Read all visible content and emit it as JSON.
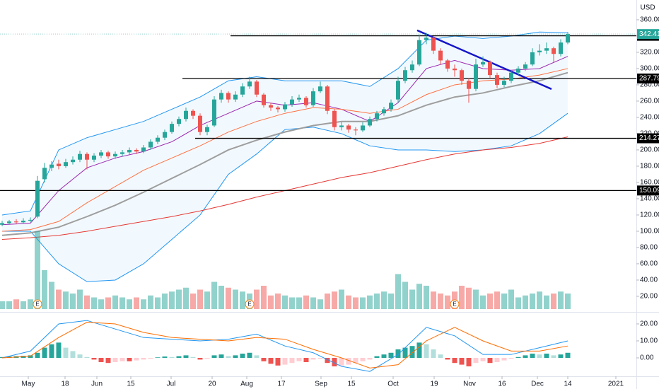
{
  "chart_data": {
    "type": "candlestick",
    "currency": "USD",
    "xlim": [
      -0.3,
      89.7
    ],
    "xticks": [
      {
        "value": 3.7,
        "label": "May"
      },
      {
        "value": 8.9,
        "label": "18"
      },
      {
        "value": 13.4,
        "label": "Jun"
      },
      {
        "value": 18.2,
        "label": "15"
      },
      {
        "value": 23.9,
        "label": "Jul"
      },
      {
        "value": 29.7,
        "label": "20"
      },
      {
        "value": 34.6,
        "label": "Aug"
      },
      {
        "value": 39.5,
        "label": "17"
      },
      {
        "value": 45.1,
        "label": "Sep"
      },
      {
        "value": 49.4,
        "label": "15"
      },
      {
        "value": 55.3,
        "label": "Oct"
      },
      {
        "value": 61.1,
        "label": "19"
      },
      {
        "value": 66.1,
        "label": "Nov"
      },
      {
        "value": 70.7,
        "label": "16"
      },
      {
        "value": 75.7,
        "label": "Dec"
      },
      {
        "value": 80,
        "label": "14"
      },
      {
        "value": 86.8,
        "label": "2021"
      }
    ],
    "ylim": [
      1.7,
      384.3
    ],
    "yticks": [
      {
        "value": 360,
        "label": "360.00"
      },
      {
        "value": 320,
        "label": "320.00"
      },
      {
        "value": 300,
        "label": "300.00"
      },
      {
        "value": 280,
        "label": "280.00"
      },
      {
        "value": 260,
        "label": "260.00"
      },
      {
        "value": 240,
        "label": "240.00"
      },
      {
        "value": 220,
        "label": "220.00"
      },
      {
        "value": 200,
        "label": "200.00"
      },
      {
        "value": 180,
        "label": "180.00"
      },
      {
        "value": 160,
        "label": "160.00"
      },
      {
        "value": 140,
        "label": "140.00"
      },
      {
        "value": 120,
        "label": "120.00"
      },
      {
        "value": 100,
        "label": "100.00"
      },
      {
        "value": 80,
        "label": "80.00"
      },
      {
        "value": 60,
        "label": "60.00"
      },
      {
        "value": 40,
        "label": "40.00"
      },
      {
        "value": 20,
        "label": "20.00"
      }
    ],
    "up_color": "#26a69a",
    "down_color": "#ef5350",
    "candles": [
      [
        108,
        113,
        106,
        110
      ],
      [
        110,
        114,
        108,
        112
      ],
      [
        112,
        115,
        109,
        111
      ],
      [
        111,
        116,
        109,
        113
      ],
      [
        113,
        117,
        111,
        114
      ],
      [
        118,
        168,
        116,
        162
      ],
      [
        164,
        184,
        160,
        178
      ],
      [
        178,
        186,
        174,
        182
      ],
      [
        183,
        188,
        176,
        180
      ],
      [
        180,
        189,
        178,
        185
      ],
      [
        185,
        192,
        182,
        188
      ],
      [
        188,
        199,
        185,
        195
      ],
      [
        195,
        197,
        176,
        188
      ],
      [
        188,
        196,
        185,
        193
      ],
      [
        193,
        200,
        190,
        197
      ],
      [
        197,
        199,
        189,
        192
      ],
      [
        192,
        198,
        189,
        195
      ],
      [
        195,
        200,
        192,
        197
      ],
      [
        197,
        203,
        194,
        200
      ],
      [
        200,
        202,
        195,
        198
      ],
      [
        198,
        206,
        196,
        203
      ],
      [
        203,
        213,
        200,
        210
      ],
      [
        210,
        218,
        207,
        215
      ],
      [
        215,
        225,
        212,
        222
      ],
      [
        222,
        235,
        220,
        232
      ],
      [
        232,
        241,
        229,
        238
      ],
      [
        238,
        252,
        235,
        248
      ],
      [
        248,
        250,
        238,
        242
      ],
      [
        242,
        245,
        218,
        222
      ],
      [
        222,
        231,
        218,
        228
      ],
      [
        230,
        266,
        228,
        262
      ],
      [
        262,
        274,
        258,
        270
      ],
      [
        270,
        272,
        258,
        262
      ],
      [
        262,
        272,
        259,
        268
      ],
      [
        268,
        282,
        265,
        278
      ],
      [
        278,
        290,
        275,
        284
      ],
      [
        284,
        286,
        265,
        268
      ],
      [
        268,
        270,
        252,
        255
      ],
      [
        255,
        258,
        248,
        252
      ],
      [
        252,
        254,
        246,
        250
      ],
      [
        250,
        259,
        247,
        256
      ],
      [
        256,
        266,
        253,
        262
      ],
      [
        262,
        268,
        259,
        264
      ],
      [
        264,
        266,
        252,
        255
      ],
      [
        255,
        276,
        253,
        272
      ],
      [
        272,
        284,
        270,
        278
      ],
      [
        278,
        280,
        244,
        248
      ],
      [
        248,
        250,
        224,
        228
      ],
      [
        228,
        234,
        224,
        230
      ],
      [
        230,
        232,
        221,
        225
      ],
      [
        225,
        228,
        218,
        224
      ],
      [
        224,
        234,
        222,
        230
      ],
      [
        230,
        241,
        228,
        238
      ],
      [
        238,
        248,
        235,
        245
      ],
      [
        245,
        253,
        242,
        250
      ],
      [
        250,
        262,
        247,
        258
      ],
      [
        262,
        290,
        258,
        285
      ],
      [
        285,
        302,
        282,
        298
      ],
      [
        298,
        310,
        295,
        305
      ],
      [
        305,
        342,
        303,
        335
      ],
      [
        335,
        344,
        330,
        338
      ],
      [
        338,
        340,
        318,
        322
      ],
      [
        322,
        325,
        305,
        310
      ],
      [
        310,
        312,
        296,
        300
      ],
      [
        300,
        305,
        290,
        298
      ],
      [
        298,
        300,
        280,
        285
      ],
      [
        285,
        288,
        258,
        275
      ],
      [
        275,
        312,
        272,
        305
      ],
      [
        305,
        315,
        302,
        308
      ],
      [
        308,
        310,
        288,
        292
      ],
      [
        292,
        295,
        276,
        280
      ],
      [
        280,
        290,
        277,
        285
      ],
      [
        285,
        298,
        282,
        295
      ],
      [
        295,
        303,
        292,
        300
      ],
      [
        300,
        308,
        297,
        305
      ],
      [
        305,
        325,
        303,
        320
      ],
      [
        320,
        330,
        316,
        322
      ],
      [
        322,
        332,
        318,
        325
      ],
      [
        325,
        327,
        308,
        318
      ],
      [
        318,
        336,
        315,
        332
      ],
      [
        332,
        345,
        330,
        342.41
      ]
    ],
    "volume": [
      4,
      4,
      5,
      4,
      5,
      40,
      20,
      14,
      10,
      9,
      8,
      10,
      7,
      6,
      5,
      6,
      7,
      6,
      5,
      6,
      5,
      7,
      6,
      8,
      9,
      10,
      11,
      8,
      10,
      9,
      14,
      12,
      11,
      10,
      9,
      8,
      10,
      12,
      7,
      8,
      7,
      6,
      6,
      7,
      6,
      5,
      8,
      9,
      10,
      7,
      6,
      6,
      7,
      8,
      9,
      8,
      18,
      14,
      10,
      13,
      12,
      9,
      8,
      7,
      9,
      12,
      11,
      10,
      7,
      8,
      9,
      8,
      10,
      6,
      7,
      8,
      9,
      7,
      8,
      9,
      8
    ],
    "volume_lim": [
      0,
      40
    ],
    "line_x": [
      0,
      4,
      8,
      12,
      16,
      20,
      24,
      28,
      32,
      36,
      40,
      44,
      48,
      52,
      56,
      60,
      64,
      68,
      72,
      76,
      80
    ],
    "band": {
      "color": "#2196f3",
      "upper": [
        120,
        125,
        200,
        215,
        225,
        235,
        250,
        265,
        285,
        290,
        285,
        285,
        285,
        278,
        300,
        335,
        340,
        337,
        340,
        345,
        344
      ],
      "lower": [
        100,
        100,
        60,
        38,
        40,
        60,
        90,
        120,
        170,
        195,
        225,
        228,
        220,
        205,
        200,
        200,
        198,
        200,
        205,
        220,
        245
      ]
    },
    "overlays": [
      {
        "color": "#9c27b0",
        "values": [
          108,
          110,
          150,
          178,
          190,
          198,
          210,
          230,
          245,
          260,
          255,
          258,
          250,
          235,
          258,
          300,
          310,
          300,
          298,
          300,
          315
        ]
      },
      {
        "color": "#ff7043",
        "values": [
          100,
          102,
          112,
          135,
          155,
          175,
          190,
          205,
          222,
          235,
          245,
          252,
          250,
          245,
          250,
          268,
          280,
          285,
          287,
          292,
          300
        ]
      },
      {
        "color": "#9e9e9e",
        "values": [
          95,
          98,
          105,
          118,
          132,
          148,
          165,
          182,
          200,
          212,
          222,
          230,
          235,
          235,
          242,
          255,
          265,
          270,
          278,
          285,
          295
        ]
      },
      {
        "color": "#e53935",
        "values": [
          90,
          92,
          95,
          100,
          106,
          112,
          118,
          125,
          133,
          142,
          150,
          158,
          166,
          172,
          180,
          188,
          195,
          200,
          203,
          208,
          216
        ]
      }
    ],
    "levels": [
      {
        "value": 340.31,
        "label": "340.31",
        "start": 32.3
      },
      {
        "value": 287.79,
        "label": "287.79",
        "start": 25.5
      },
      {
        "value": 214.27,
        "label": "214.27",
        "start": 27.3
      },
      {
        "value": 150.09,
        "label": "150.09",
        "start": -0.3
      }
    ],
    "last_price": {
      "value": 342.41,
      "label": "342.41"
    },
    "trendline": [
      [
        58.7,
        347
      ],
      [
        77.7,
        274.8
      ]
    ],
    "earnings": [
      5,
      35,
      64
    ],
    "earnings_label": "E",
    "macd": {
      "ylim": [
        -10,
        25.4
      ],
      "yticks": [
        {
          "value": 20,
          "label": "20.00"
        },
        {
          "value": 10,
          "label": "10.00"
        },
        {
          "value": 0,
          "label": "0.00"
        }
      ],
      "macd_line": [
        0,
        4,
        20,
        22,
        17,
        12,
        11,
        10,
        11,
        14,
        7,
        3,
        -5,
        -8,
        2,
        18,
        13,
        2,
        2,
        6,
        10
      ],
      "signal_line": [
        0,
        1,
        12,
        21,
        20,
        15,
        12,
        11,
        10,
        12,
        11,
        5,
        0,
        -6,
        -4,
        10,
        18,
        10,
        4,
        4,
        7
      ],
      "macd_color": "#2196f3",
      "signal_color": "#ff6d00",
      "histogram": [
        0.5,
        0.8,
        1,
        1.2,
        1.5,
        3,
        6,
        8,
        9,
        6,
        4,
        2,
        0.5,
        -1,
        -2.5,
        -3,
        -2.5,
        -2,
        -2,
        -1.5,
        -1,
        -0.5,
        0.3,
        0.8,
        0.5,
        1,
        1.5,
        0.5,
        -1,
        -0.5,
        1.5,
        2,
        1,
        1.5,
        2.5,
        3,
        1.5,
        -2,
        -3.5,
        -4.5,
        -4,
        -3,
        -2,
        -2.5,
        -1,
        -0.5,
        -3,
        -5,
        -4.5,
        -4,
        -3,
        -2,
        -1,
        1,
        2,
        3,
        5,
        6,
        7,
        9,
        8,
        5,
        2,
        -1,
        -3,
        -4,
        -5,
        -3,
        -2,
        -3,
        -2.5,
        -1.5,
        -0.5,
        0.5,
        1.5,
        2.5,
        2,
        2.5,
        1.5,
        2,
        3
      ]
    }
  }
}
